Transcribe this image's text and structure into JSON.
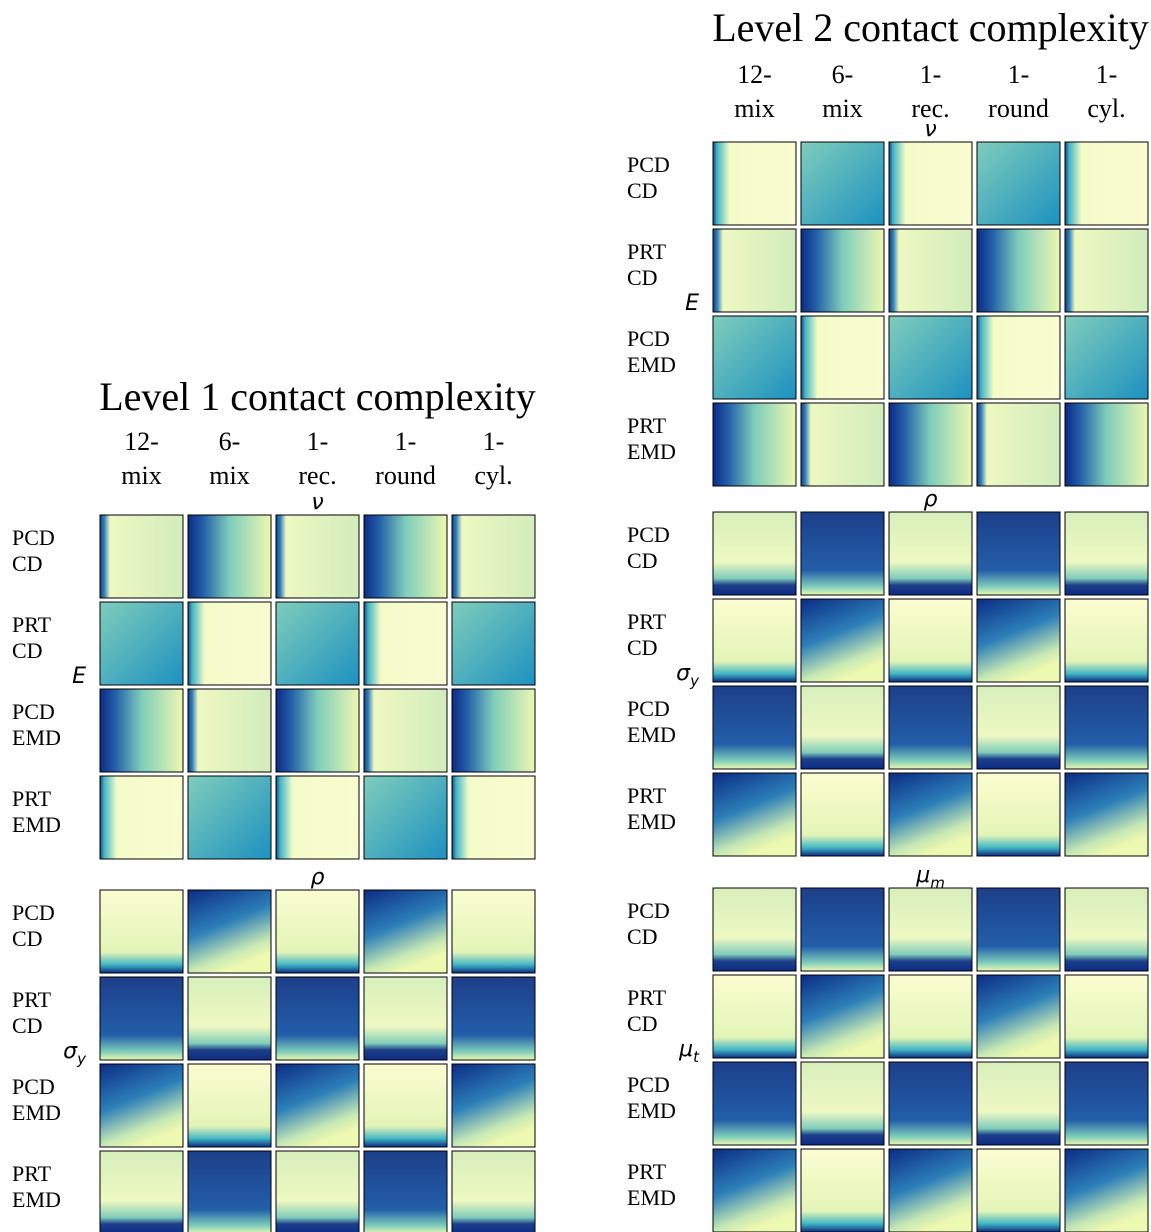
{
  "panels": [
    {
      "title": "Level 1 contact complexity",
      "columns": [
        [
          "12-",
          "mix"
        ],
        [
          "6-",
          "mix"
        ],
        [
          "1-",
          "rec."
        ],
        [
          "1-",
          "round"
        ],
        [
          "1-",
          "cyl."
        ]
      ],
      "blocks": [
        {
          "x_label": {
            "base": "ν"
          },
          "y_label": {
            "base": "E"
          },
          "rows": [
            [
              "PCD",
              "CD"
            ],
            [
              "PRT",
              "CD"
            ],
            [
              "PCD",
              "EMD"
            ],
            [
              "PRT",
              "EMD"
            ]
          ]
        },
        {
          "x_label": {
            "base": "ρ"
          },
          "y_label": {
            "base": "σ",
            "sub": "y"
          },
          "rows": [
            [
              "PCD",
              "CD"
            ],
            [
              "PRT",
              "CD"
            ],
            [
              "PCD",
              "EMD"
            ],
            [
              "PRT",
              "EMD"
            ]
          ]
        }
      ]
    },
    {
      "title": "Level 2 contact complexity",
      "columns": [
        [
          "12-",
          "mix"
        ],
        [
          "6-",
          "mix"
        ],
        [
          "1-",
          "rec."
        ],
        [
          "1-",
          "round"
        ],
        [
          "1-",
          "cyl."
        ]
      ],
      "blocks": [
        {
          "x_label": {
            "base": "ν"
          },
          "y_label": {
            "base": "E"
          },
          "rows": [
            [
              "PCD",
              "CD"
            ],
            [
              "PRT",
              "CD"
            ],
            [
              "PCD",
              "EMD"
            ],
            [
              "PRT",
              "EMD"
            ]
          ]
        },
        {
          "x_label": {
            "base": "ρ"
          },
          "y_label": {
            "base": "σ",
            "sub": "y"
          },
          "rows": [
            [
              "PCD",
              "CD"
            ],
            [
              "PRT",
              "CD"
            ],
            [
              "PCD",
              "EMD"
            ],
            [
              "PRT",
              "EMD"
            ]
          ]
        },
        {
          "x_label": {
            "base": "μ",
            "sub": "m"
          },
          "y_label": {
            "base": "μ",
            "sub": "t"
          },
          "rows": [
            [
              "PCD",
              "CD"
            ],
            [
              "PRT",
              "CD"
            ],
            [
              "PCD",
              "EMD"
            ],
            [
              "PRT",
              "EMD"
            ]
          ]
        }
      ]
    }
  ]
}
